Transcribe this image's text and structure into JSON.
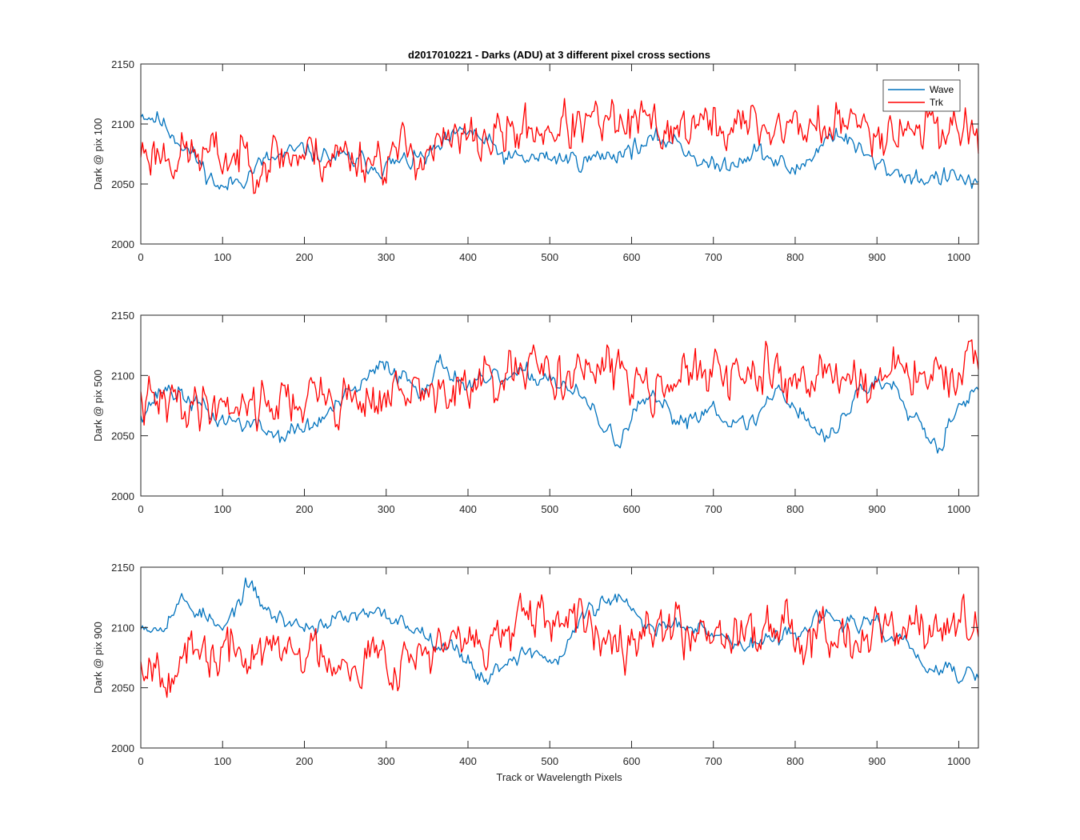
{
  "colors": {
    "wave": "#0072BD",
    "trk": "#FF0000",
    "axis": "#262626"
  },
  "chart_data": [
    {
      "type": "line",
      "title": "d2017010221 - Darks (ADU) at 3 different pixel cross sections",
      "xlabel": "",
      "ylabel": "Dark @ pix 100",
      "xlim": [
        0,
        1024
      ],
      "ylim": [
        2000,
        2150
      ],
      "xticks": [
        "0",
        "100",
        "200",
        "300",
        "400",
        "500",
        "600",
        "700",
        "800",
        "900",
        "1000"
      ],
      "yticks": [
        "2000",
        "2050",
        "2100",
        "2150"
      ],
      "grid": false,
      "legend": {
        "placement": "top-right",
        "entries": [
          "Wave",
          "Trk"
        ]
      },
      "series": [
        {
          "name": "Wave",
          "color": "#0072BD",
          "noise": 8,
          "seed": 11,
          "x": [
            0,
            20,
            50,
            80,
            100,
            150,
            200,
            250,
            300,
            350,
            400,
            450,
            500,
            550,
            600,
            650,
            700,
            750,
            800,
            850,
            900,
            950,
            1000,
            1024
          ],
          "values": [
            2110,
            2105,
            2085,
            2060,
            2045,
            2068,
            2078,
            2070,
            2065,
            2072,
            2095,
            2070,
            2072,
            2070,
            2080,
            2088,
            2062,
            2078,
            2060,
            2095,
            2065,
            2055,
            2055,
            2050
          ]
        },
        {
          "name": "Trk",
          "color": "#FF0000",
          "noise": 20,
          "seed": 23,
          "x": [
            0,
            100,
            200,
            300,
            400,
            500,
            600,
            700,
            800,
            900,
            1000,
            1024
          ],
          "values": [
            2078,
            2072,
            2075,
            2073,
            2085,
            2098,
            2098,
            2098,
            2098,
            2098,
            2098,
            2095
          ]
        }
      ]
    },
    {
      "type": "line",
      "title": "",
      "xlabel": "",
      "ylabel": "Dark @ pix 500",
      "xlim": [
        0,
        1024
      ],
      "ylim": [
        2000,
        2150
      ],
      "xticks": [
        "0",
        "100",
        "200",
        "300",
        "400",
        "500",
        "600",
        "700",
        "800",
        "900",
        "1000"
      ],
      "yticks": [
        "2000",
        "2050",
        "2100",
        "2150"
      ],
      "grid": false,
      "series": [
        {
          "name": "Wave",
          "color": "#0072BD",
          "noise": 8,
          "seed": 37,
          "x": [
            0,
            30,
            60,
            90,
            130,
            170,
            210,
            250,
            300,
            340,
            370,
            400,
            450,
            500,
            540,
            580,
            620,
            660,
            700,
            740,
            780,
            840,
            880,
            920,
            960,
            975,
            1000,
            1024
          ],
          "values": [
            2070,
            2090,
            2080,
            2065,
            2060,
            2050,
            2058,
            2080,
            2110,
            2090,
            2110,
            2090,
            2098,
            2100,
            2080,
            2045,
            2080,
            2062,
            2075,
            2055,
            2090,
            2045,
            2090,
            2095,
            2055,
            2040,
            2080,
            2085
          ]
        },
        {
          "name": "Trk",
          "color": "#FF0000",
          "noise": 20,
          "seed": 41,
          "x": [
            0,
            100,
            200,
            300,
            400,
            500,
            600,
            700,
            800,
            900,
            1000,
            1024
          ],
          "values": [
            2075,
            2078,
            2080,
            2082,
            2088,
            2105,
            2100,
            2098,
            2100,
            2098,
            2100,
            2098
          ]
        }
      ]
    },
    {
      "type": "line",
      "title": "",
      "xlabel": "Track or Wavelength Pixels",
      "ylabel": "Dark @ pix 900",
      "xlim": [
        0,
        1024
      ],
      "ylim": [
        2000,
        2150
      ],
      "xticks": [
        "0",
        "100",
        "200",
        "300",
        "400",
        "500",
        "600",
        "700",
        "800",
        "900",
        "1000"
      ],
      "yticks": [
        "2000",
        "2050",
        "2100",
        "2150"
      ],
      "grid": false,
      "series": [
        {
          "name": "Wave",
          "color": "#0072BD",
          "noise": 7,
          "seed": 53,
          "x": [
            0,
            20,
            50,
            80,
            100,
            130,
            160,
            200,
            250,
            300,
            350,
            400,
            420,
            450,
            480,
            510,
            540,
            580,
            620,
            680,
            730,
            780,
            830,
            860,
            900,
            940,
            960,
            1000,
            1024
          ],
          "values": [
            2105,
            2100,
            2122,
            2110,
            2095,
            2135,
            2110,
            2100,
            2108,
            2110,
            2095,
            2075,
            2055,
            2075,
            2080,
            2070,
            2110,
            2125,
            2100,
            2105,
            2085,
            2090,
            2108,
            2105,
            2100,
            2085,
            2065,
            2062,
            2060
          ]
        },
        {
          "name": "Trk",
          "color": "#FF0000",
          "noise": 20,
          "seed": 67,
          "x": [
            0,
            50,
            100,
            200,
            300,
            400,
            470,
            500,
            600,
            700,
            800,
            900,
            1000,
            1024
          ],
          "values": [
            2075,
            2070,
            2078,
            2080,
            2075,
            2085,
            2100,
            2100,
            2100,
            2100,
            2100,
            2098,
            2100,
            2095
          ]
        }
      ]
    }
  ]
}
